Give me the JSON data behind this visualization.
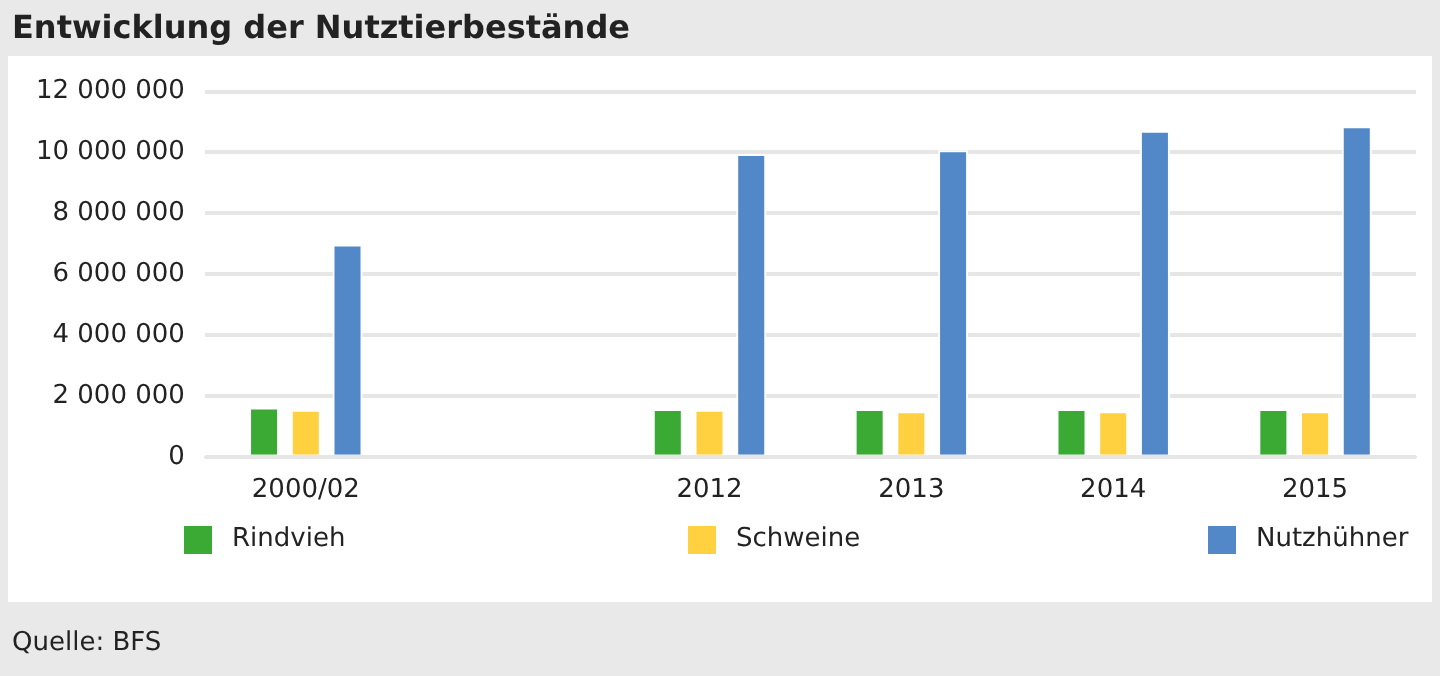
{
  "chart_data": {
    "type": "bar",
    "title": "Entwicklung der Nutztierbestände",
    "categories": [
      "2000/02",
      null,
      "2012",
      "2013",
      "2014",
      "2015"
    ],
    "series": [
      {
        "name": "Rindvieh",
        "color": "#3aaa35",
        "values": [
          1620000,
          null,
          1570000,
          1570000,
          1570000,
          1570000
        ]
      },
      {
        "name": "Schweine",
        "color": "#ffd03f",
        "values": [
          1550000,
          null,
          1550000,
          1500000,
          1500000,
          1500000
        ]
      },
      {
        "name": "Nutzhühner",
        "color": "#5388c8",
        "values": [
          6980000,
          null,
          9950000,
          10070000,
          10710000,
          10860000
        ]
      }
    ],
    "ylim": [
      0,
      12000000
    ],
    "yticks": [
      {
        "value": 0,
        "label": "0"
      },
      {
        "value": 2000000,
        "label": "2 000 000"
      },
      {
        "value": 4000000,
        "label": "4 000 000"
      },
      {
        "value": 6000000,
        "label": "6 000 000"
      },
      {
        "value": 8000000,
        "label": "8 000 000"
      },
      {
        "value": 10000000,
        "label": "10 000 000"
      },
      {
        "value": 12000000,
        "label": "12 000 000"
      }
    ],
    "grid": "y",
    "legend": "bottom",
    "annotations": [
      "Quelle: BFS"
    ]
  }
}
